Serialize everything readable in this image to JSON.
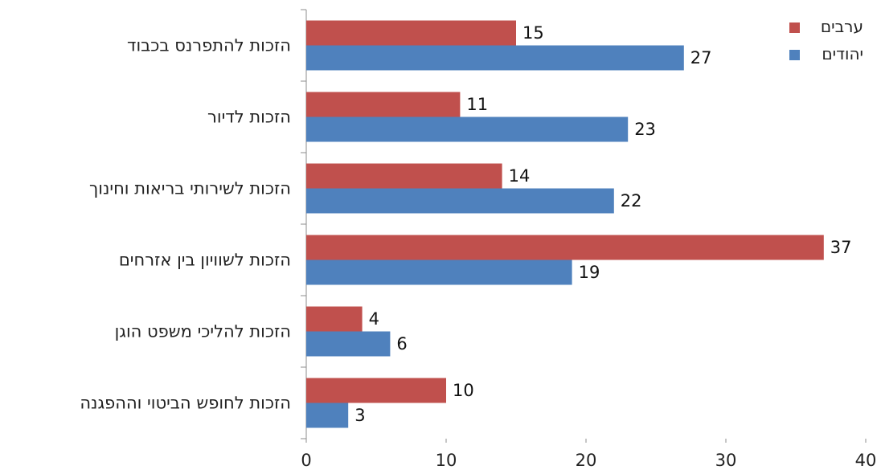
{
  "chart_data": {
    "type": "bar",
    "orientation": "horizontal",
    "categories": [
      "הזכות להתפרנס בכבוד",
      "הזכות לדיור",
      "הזכות לשירותי בריאות וחינוך",
      "הזכות לשוויון בין אזרחים",
      "הזכות להליכי משפט הוגן",
      "הזכות לחופש הביטוי וההפגנה"
    ],
    "series": [
      {
        "name": "ערבים",
        "color": "#c0504d",
        "values": [
          15,
          11,
          14,
          37,
          4,
          10
        ]
      },
      {
        "name": "יהודים",
        "color": "#4f81bd",
        "values": [
          27,
          23,
          22,
          19,
          6,
          3
        ]
      }
    ],
    "xlim": [
      0,
      40
    ],
    "xticks": [
      0,
      10,
      20,
      30,
      40
    ],
    "title": "",
    "xlabel": "",
    "ylabel": "",
    "grid": false,
    "legend_position": "top-right",
    "data_labels": true
  }
}
